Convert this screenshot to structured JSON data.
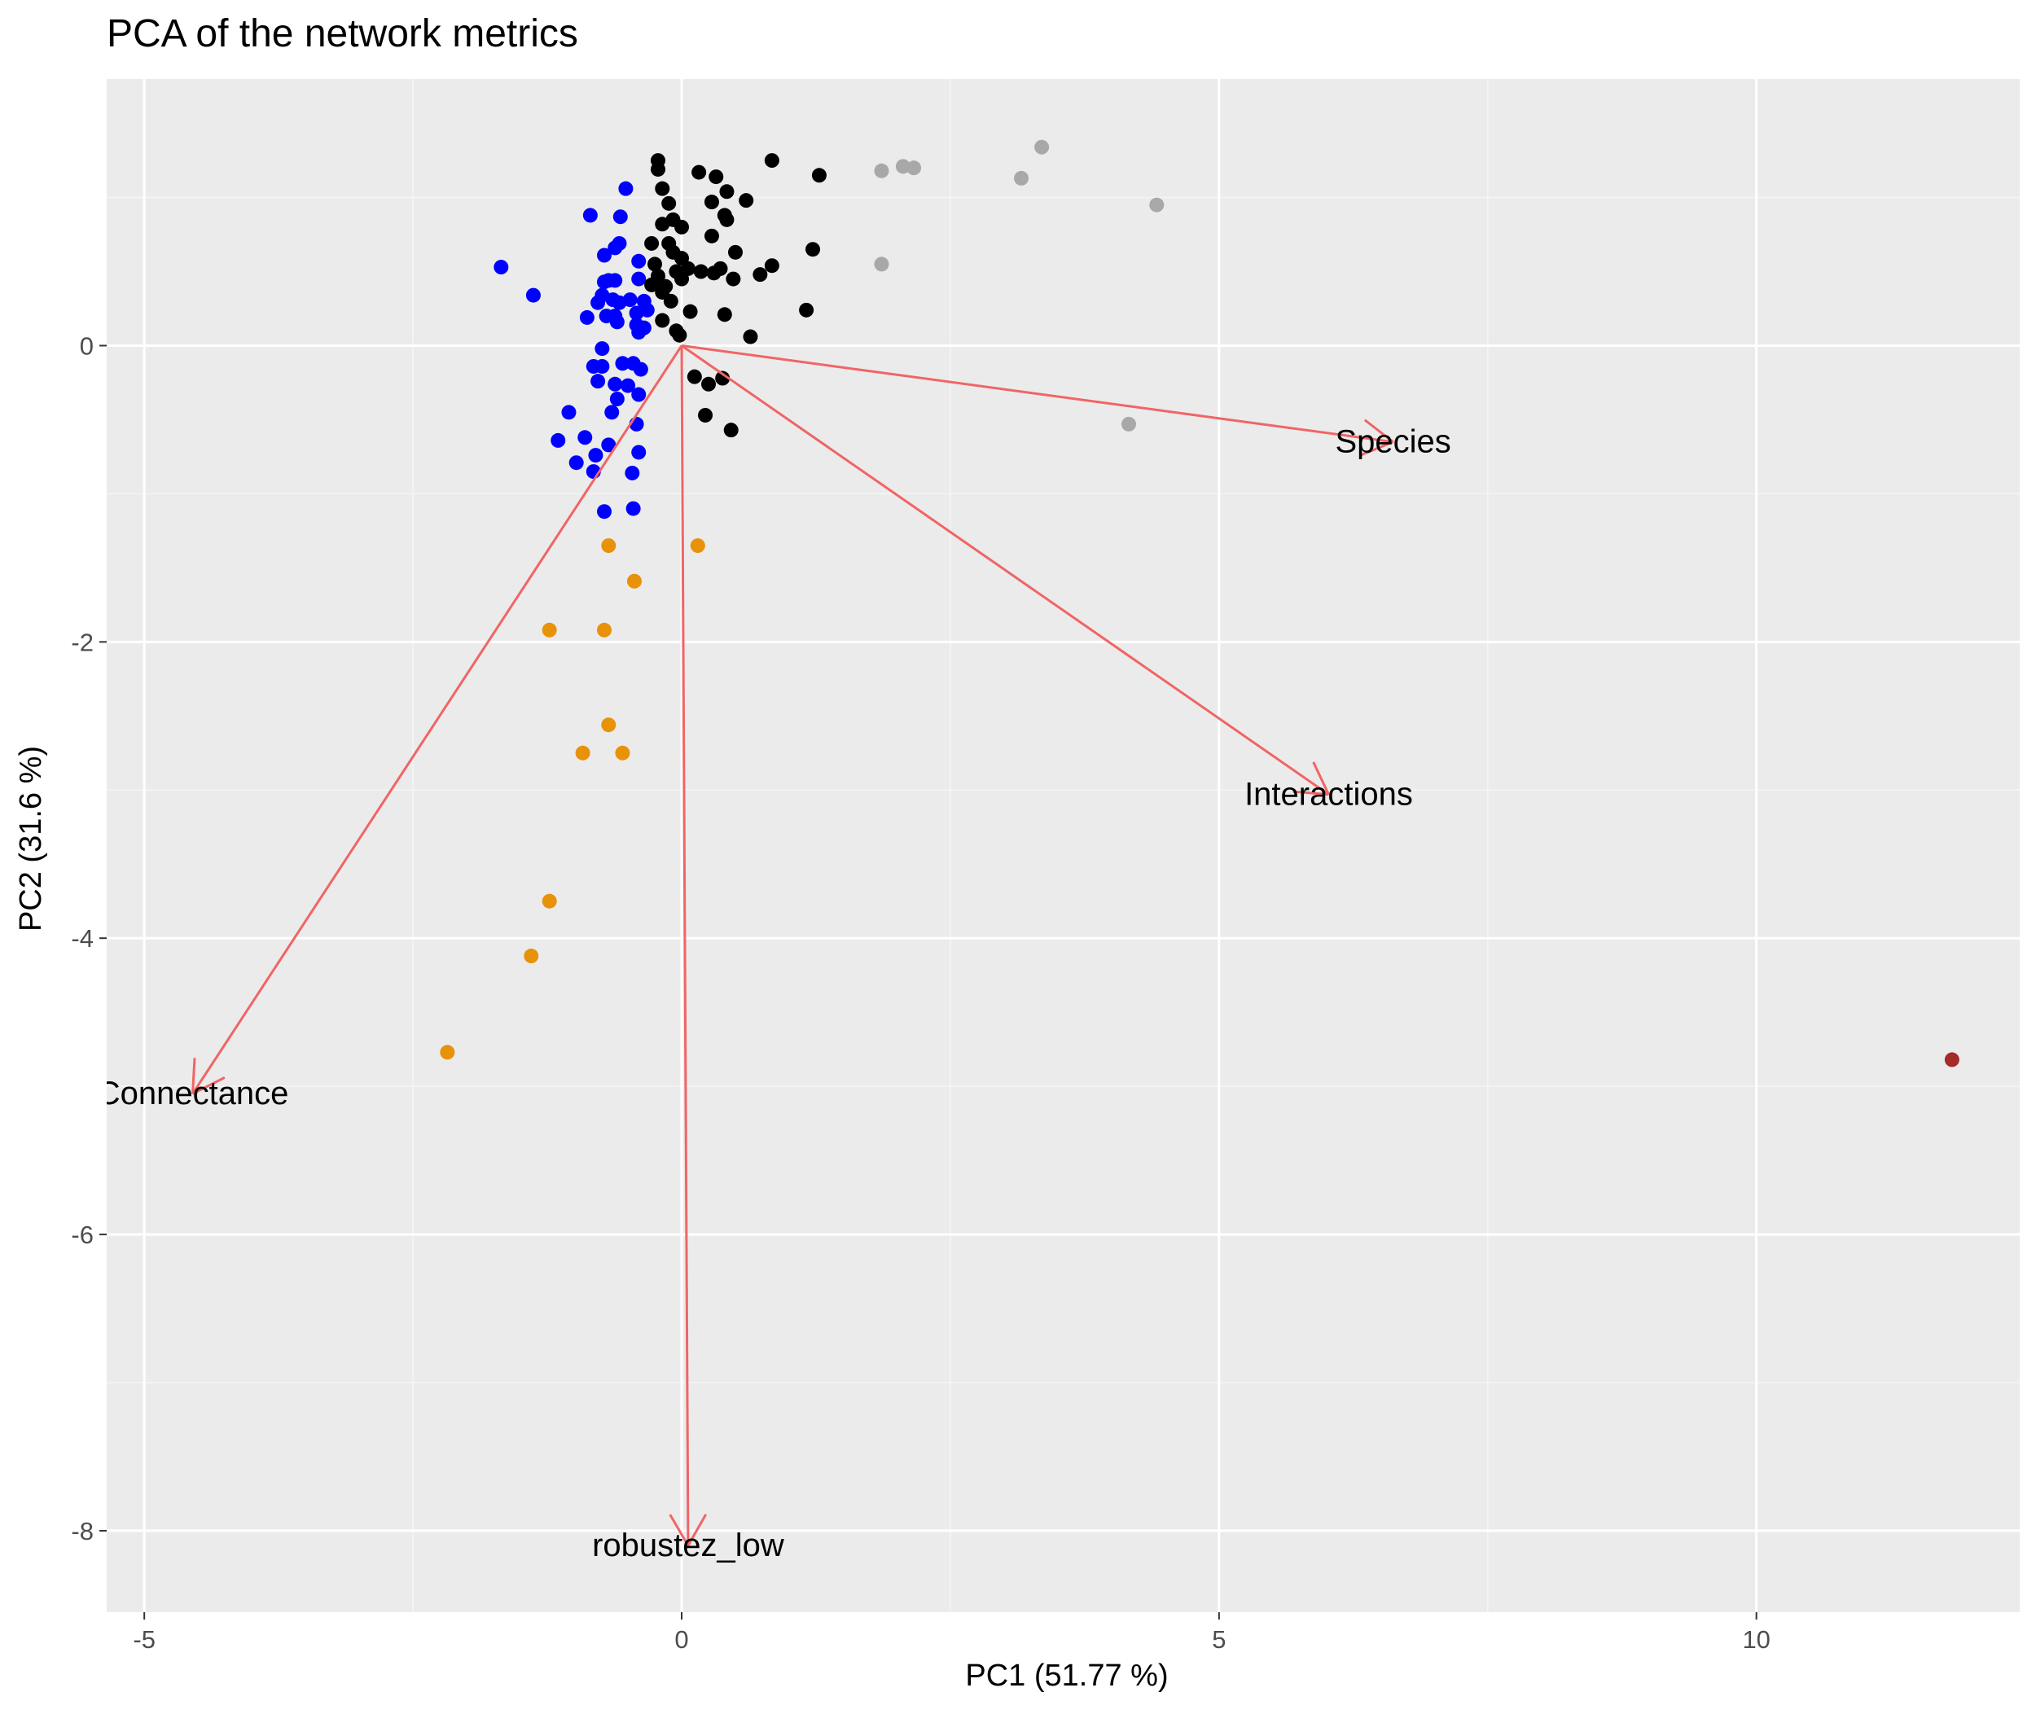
{
  "chart_data": {
    "type": "scatter",
    "title": "PCA of the network metrics",
    "xlabel": "PC1 (51.77 %)",
    "ylabel": "PC2 (31.6 %)",
    "xlim": [
      -5.35,
      12.45
    ],
    "ylim": [
      -8.55,
      1.8
    ],
    "x_ticks": [
      -5,
      0,
      5,
      10
    ],
    "x_tick_labels": [
      "-5",
      "0",
      "5",
      "10"
    ],
    "y_ticks": [
      -8,
      -6,
      -4,
      -2,
      0
    ],
    "y_tick_labels": [
      "-8",
      "-6",
      "-4",
      "-2",
      "0"
    ],
    "grid": true,
    "legend": "none",
    "colors": {
      "panel_background": "#ebebeb",
      "grid_major": "#ffffff",
      "grid_minor": "#f5f5f5",
      "arrow": "#f06565",
      "text": "#000000",
      "tick_text": "#4d4d4d"
    },
    "series": [
      {
        "color": "#0000ff",
        "points": [
          [
            -1.68,
            0.53
          ],
          [
            -1.38,
            0.34
          ],
          [
            -0.85,
            0.88
          ],
          [
            -0.57,
            0.87
          ],
          [
            -0.52,
            1.06
          ],
          [
            -0.72,
            0.61
          ],
          [
            -0.62,
            0.66
          ],
          [
            -0.58,
            0.69
          ],
          [
            -0.4,
            0.57
          ],
          [
            -0.68,
            0.44
          ],
          [
            -0.72,
            0.43
          ],
          [
            -0.62,
            0.44
          ],
          [
            -0.4,
            0.45
          ],
          [
            -0.74,
            0.34
          ],
          [
            -0.78,
            0.29
          ],
          [
            -0.64,
            0.31
          ],
          [
            -0.58,
            0.29
          ],
          [
            -0.48,
            0.31
          ],
          [
            -0.35,
            0.3
          ],
          [
            -0.88,
            0.19
          ],
          [
            -0.7,
            0.2
          ],
          [
            -0.62,
            0.2
          ],
          [
            -0.42,
            0.22
          ],
          [
            -0.32,
            0.24
          ],
          [
            -0.6,
            0.16
          ],
          [
            -0.42,
            0.14
          ],
          [
            -0.35,
            0.12
          ],
          [
            -0.4,
            0.09
          ],
          [
            -0.74,
            -0.02
          ],
          [
            -0.82,
            -0.14
          ],
          [
            -0.74,
            -0.14
          ],
          [
            -0.55,
            -0.12
          ],
          [
            -0.45,
            -0.12
          ],
          [
            -0.38,
            -0.16
          ],
          [
            -0.78,
            -0.24
          ],
          [
            -0.62,
            -0.26
          ],
          [
            -0.5,
            -0.27
          ],
          [
            -0.6,
            -0.36
          ],
          [
            -0.4,
            -0.33
          ],
          [
            -1.05,
            -0.45
          ],
          [
            -0.65,
            -0.45
          ],
          [
            -0.42,
            -0.53
          ],
          [
            -1.15,
            -0.64
          ],
          [
            -0.9,
            -0.62
          ],
          [
            -0.68,
            -0.67
          ],
          [
            -0.8,
            -0.74
          ],
          [
            -0.4,
            -0.72
          ],
          [
            -0.98,
            -0.79
          ],
          [
            -0.82,
            -0.85
          ],
          [
            -0.46,
            -0.86
          ],
          [
            -0.72,
            -1.12
          ],
          [
            -0.45,
            -1.1
          ]
        ]
      },
      {
        "color": "#000000",
        "points": [
          [
            -0.22,
            1.25
          ],
          [
            -0.22,
            1.19
          ],
          [
            0.16,
            1.17
          ],
          [
            0.32,
            1.14
          ],
          [
            0.84,
            1.25
          ],
          [
            1.28,
            1.15
          ],
          [
            -0.18,
            1.06
          ],
          [
            0.42,
            1.04
          ],
          [
            -0.12,
            0.96
          ],
          [
            0.28,
            0.97
          ],
          [
            0.6,
            0.98
          ],
          [
            0.4,
            0.88
          ],
          [
            -0.08,
            0.85
          ],
          [
            0.42,
            0.85
          ],
          [
            0.0,
            0.8
          ],
          [
            -0.18,
            0.82
          ],
          [
            0.28,
            0.74
          ],
          [
            -0.28,
            0.69
          ],
          [
            -0.12,
            0.69
          ],
          [
            -0.08,
            0.63
          ],
          [
            0.5,
            0.63
          ],
          [
            1.22,
            0.65
          ],
          [
            -0.25,
            0.55
          ],
          [
            0.0,
            0.59
          ],
          [
            0.84,
            0.54
          ],
          [
            -0.05,
            0.5
          ],
          [
            0.18,
            0.5
          ],
          [
            0.3,
            0.49
          ],
          [
            0.36,
            0.52
          ],
          [
            0.48,
            0.45
          ],
          [
            0.73,
            0.48
          ],
          [
            -0.22,
            0.47
          ],
          [
            -0.15,
            0.4
          ],
          [
            0.0,
            0.45
          ],
          [
            0.06,
            0.52
          ],
          [
            -0.28,
            0.41
          ],
          [
            -0.18,
            0.36
          ],
          [
            -0.1,
            0.3
          ],
          [
            0.08,
            0.23
          ],
          [
            0.4,
            0.21
          ],
          [
            1.16,
            0.24
          ],
          [
            -0.18,
            0.17
          ],
          [
            -0.05,
            0.1
          ],
          [
            -0.02,
            0.07
          ],
          [
            0.64,
            0.06
          ],
          [
            0.12,
            -0.21
          ],
          [
            0.25,
            -0.26
          ],
          [
            0.38,
            -0.22
          ],
          [
            0.22,
            -0.47
          ],
          [
            0.46,
            -0.57
          ]
        ]
      },
      {
        "color": "#a8a8a8",
        "points": [
          [
            1.86,
            1.18
          ],
          [
            2.06,
            1.21
          ],
          [
            2.16,
            1.2
          ],
          [
            3.16,
            1.13
          ],
          [
            3.35,
            1.34
          ],
          [
            4.42,
            0.95
          ],
          [
            1.86,
            0.55
          ],
          [
            4.16,
            -0.53
          ]
        ]
      },
      {
        "color": "#e8920a",
        "points": [
          [
            -0.68,
            -1.35
          ],
          [
            0.15,
            -1.35
          ],
          [
            -0.44,
            -1.59
          ],
          [
            -1.23,
            -1.92
          ],
          [
            -0.72,
            -1.92
          ],
          [
            -0.68,
            -2.56
          ],
          [
            -0.92,
            -2.75
          ],
          [
            -0.55,
            -2.75
          ],
          [
            -1.23,
            -3.75
          ],
          [
            -1.4,
            -4.12
          ],
          [
            -2.18,
            -4.77
          ]
        ]
      },
      {
        "color": "#a52a2a",
        "points": [
          [
            11.82,
            -4.82
          ]
        ]
      }
    ],
    "arrows": [
      {
        "label": "Species",
        "x": 6.62,
        "y": -0.65
      },
      {
        "label": "Interactions",
        "x": 6.02,
        "y": -3.03
      },
      {
        "label": "Connectance",
        "x": -4.55,
        "y": -5.05
      },
      {
        "label": "robustez_low",
        "x": 0.06,
        "y": -8.1
      }
    ]
  }
}
